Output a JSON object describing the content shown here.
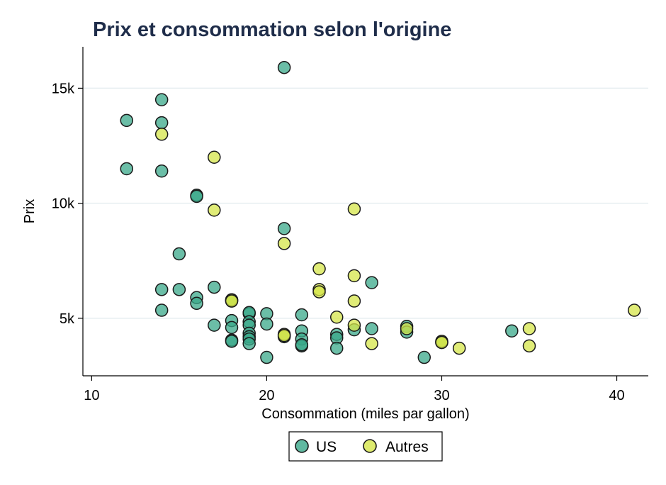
{
  "chart_data": {
    "type": "scatter",
    "title": "Prix et consommation selon l'origine",
    "xlabel": "Consommation (miles par gallon)",
    "ylabel": "Prix",
    "xlim": [
      9.5,
      41.8
    ],
    "ylim": [
      2500,
      16800
    ],
    "xticks": [
      {
        "value": 10,
        "label": "10"
      },
      {
        "value": 20,
        "label": "20"
      },
      {
        "value": 30,
        "label": "30"
      },
      {
        "value": 40,
        "label": "40"
      }
    ],
    "yticks": [
      {
        "value": 5000,
        "label": "5k"
      },
      {
        "value": 10000,
        "label": "10k"
      },
      {
        "value": 15000,
        "label": "15k"
      }
    ],
    "grid": "horizontal",
    "legend": "bottom-center",
    "series": [
      {
        "name": "US",
        "color": "#3aa889",
        "points": [
          [
            21,
            15900
          ],
          [
            14,
            14500
          ],
          [
            12,
            13600
          ],
          [
            14,
            13500
          ],
          [
            12,
            11500
          ],
          [
            14,
            11400
          ],
          [
            16,
            10350
          ],
          [
            16,
            10300
          ],
          [
            21,
            8900
          ],
          [
            15,
            7800
          ],
          [
            17,
            6350
          ],
          [
            26,
            6550
          ],
          [
            14,
            6250
          ],
          [
            15,
            6250
          ],
          [
            16,
            5900
          ],
          [
            16,
            5650
          ],
          [
            18,
            5800
          ],
          [
            18,
            5750
          ],
          [
            14,
            5350
          ],
          [
            19,
            5200
          ],
          [
            19,
            5250
          ],
          [
            20,
            5200
          ],
          [
            22,
            5150
          ],
          [
            19,
            4850
          ],
          [
            18,
            4900
          ],
          [
            17,
            4700
          ],
          [
            19,
            4700
          ],
          [
            20,
            4750
          ],
          [
            18,
            4600
          ],
          [
            28,
            4650
          ],
          [
            26,
            4550
          ],
          [
            25,
            4500
          ],
          [
            34,
            4450
          ],
          [
            22,
            4450
          ],
          [
            28,
            4400
          ],
          [
            19,
            4350
          ],
          [
            24,
            4300
          ],
          [
            21,
            4200
          ],
          [
            19,
            4200
          ],
          [
            19,
            4100
          ],
          [
            24,
            4150
          ],
          [
            22,
            4100
          ],
          [
            18,
            4050
          ],
          [
            18,
            4000
          ],
          [
            30,
            3950
          ],
          [
            19,
            3900
          ],
          [
            22,
            3800
          ],
          [
            22,
            3850
          ],
          [
            24,
            3700
          ],
          [
            20,
            3300
          ],
          [
            29,
            3300
          ]
        ]
      },
      {
        "name": "Autres",
        "color": "#d6e64a",
        "points": [
          [
            14,
            13000
          ],
          [
            17,
            12000
          ],
          [
            17,
            9700
          ],
          [
            25,
            9750
          ],
          [
            21,
            8250
          ],
          [
            23,
            7150
          ],
          [
            25,
            6850
          ],
          [
            23,
            6250
          ],
          [
            23,
            6150
          ],
          [
            18,
            5800
          ],
          [
            18,
            5750
          ],
          [
            25,
            5750
          ],
          [
            24,
            5050
          ],
          [
            41,
            5350
          ],
          [
            25,
            4700
          ],
          [
            28,
            4550
          ],
          [
            35,
            4550
          ],
          [
            21,
            4300
          ],
          [
            21,
            4250
          ],
          [
            30,
            4000
          ],
          [
            30,
            3950
          ],
          [
            26,
            3900
          ],
          [
            35,
            3800
          ],
          [
            31,
            3700
          ]
        ]
      }
    ]
  }
}
